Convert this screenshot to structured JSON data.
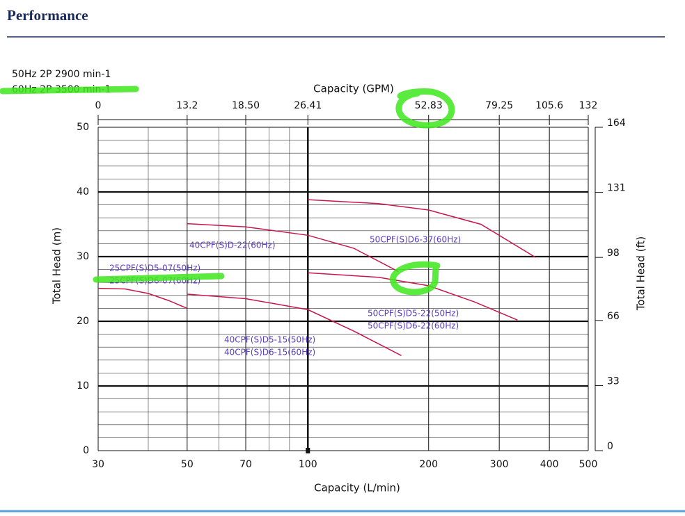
{
  "header": {
    "title": "Performance"
  },
  "chart_data": {
    "type": "line",
    "notes": [
      "50Hz 2P 2900 min-1",
      "60Hz 2P 3500 min-1"
    ],
    "x_label": "Capacity (L/min)",
    "x2_label": "Capacity (GPM)",
    "y_label": "Total Head (m)",
    "y2_label": "Total Head (ft)",
    "xscale": "log",
    "xlim": [
      30,
      500
    ],
    "xticks": [
      30,
      50,
      70,
      100,
      200,
      300,
      400,
      500
    ],
    "xminor": [
      40,
      60,
      80,
      90
    ],
    "x2ticks": [
      {
        "value": 30,
        "label": "0"
      },
      {
        "value": 50,
        "label": "13.2"
      },
      {
        "value": 70,
        "label": "18.50"
      },
      {
        "value": 100,
        "label": "26.41"
      },
      {
        "value": 200,
        "label": "52.83"
      },
      {
        "value": 300,
        "label": "79.25"
      },
      {
        "value": 400,
        "label": "105.6"
      },
      {
        "value": 500,
        "label": "132"
      }
    ],
    "ylim": [
      0,
      50
    ],
    "yticks": [
      0,
      10,
      20,
      30,
      40,
      50
    ],
    "yminor": [
      2,
      4,
      6,
      8,
      12,
      14,
      16,
      18,
      22,
      24,
      26,
      28,
      32,
      34,
      36,
      38,
      42,
      44,
      46,
      48
    ],
    "y2lim": [
      0,
      164
    ],
    "y2ticks": [
      0,
      33,
      66,
      98,
      131,
      164
    ],
    "grid": true,
    "line_color": "#c8164a",
    "label_color": "#5a3cc8",
    "series": [
      {
        "labels": [
          "25CPF(S)D5-07(50Hz)",
          "25CPF(S)D6-07(60Hz)"
        ],
        "x": [
          30,
          35,
          40,
          45,
          50
        ],
        "values": [
          25.1,
          25,
          24.3,
          23.2,
          22
        ]
      },
      {
        "labels": [
          "40CPF(S)D5-15(50Hz)",
          "40CPF(S)D6-15(60Hz)"
        ],
        "x": [
          50,
          70,
          100,
          130,
          171
        ],
        "values": [
          24.2,
          23.5,
          21.8,
          18.5,
          14.7
        ]
      },
      {
        "labels": [
          "40CPF(S)D-22(60Hz)"
        ],
        "x": [
          50,
          70,
          100,
          130,
          168
        ],
        "values": [
          35.1,
          34.6,
          33.3,
          31.3,
          27.7
        ]
      },
      {
        "labels": [
          "50CPF(S)D6-37(60Hz)"
        ],
        "x": [
          100,
          150,
          200,
          270,
          369
        ],
        "values": [
          38.8,
          38.2,
          37.2,
          35,
          29.9
        ]
      },
      {
        "labels": [
          "50CPF(S)D5-22(50Hz)",
          "50CPF(S)D6-22(60Hz)"
        ],
        "x": [
          100,
          150,
          200,
          260,
          333
        ],
        "values": [
          27.5,
          26.8,
          25.5,
          23,
          20.2
        ]
      }
    ]
  }
}
